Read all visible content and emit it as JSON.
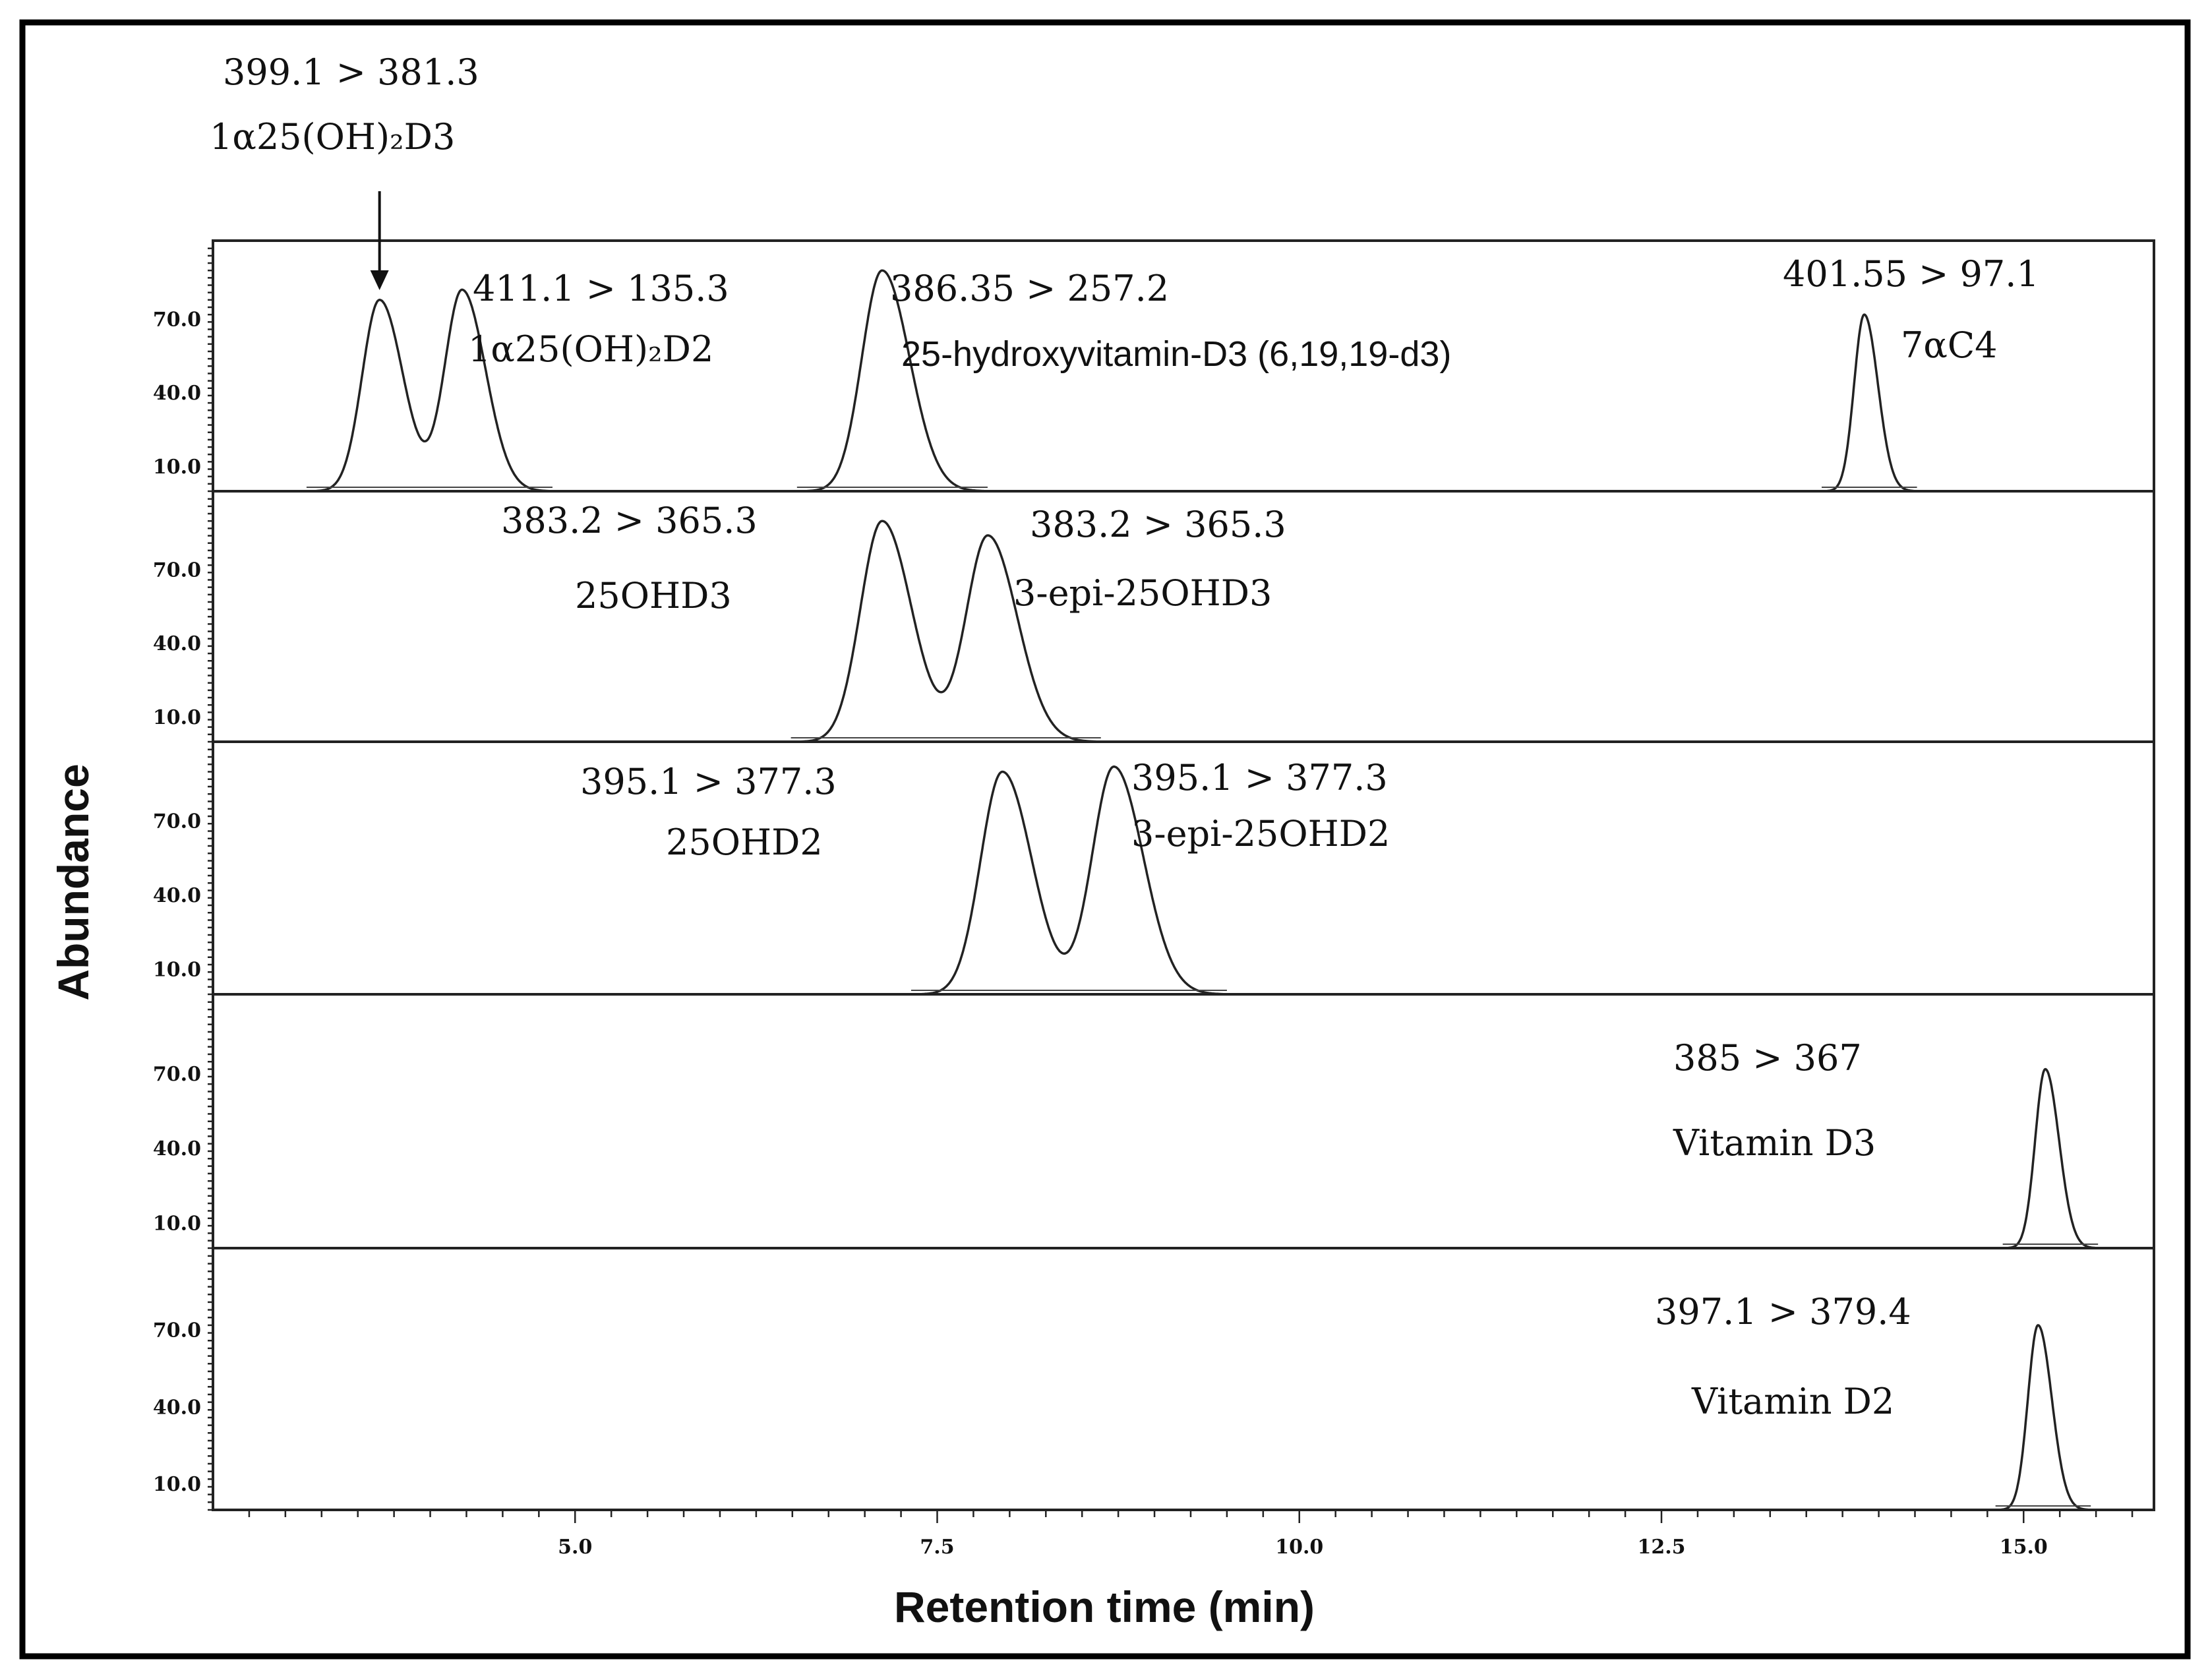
{
  "chart_data": {
    "type": "line",
    "xlabel": "Retention time (min)",
    "ylabel": "Abundance",
    "xlim": [
      2.5,
      15.9
    ],
    "xticks": [
      "5.0",
      "7.5",
      "10.0",
      "12.5",
      "15.0"
    ],
    "xtick_values": [
      5.0,
      7.5,
      10.0,
      12.5,
      15.0
    ],
    "ylim": [
      0,
      100
    ],
    "yticks": [
      "10.0",
      "40.0",
      "70.0"
    ],
    "ytick_values": [
      10,
      40,
      70
    ],
    "grid": false,
    "panels": [
      {
        "name": "panel-1",
        "peaks": [
          {
            "rt": 3.65,
            "height": 78,
            "width": 0.12
          },
          {
            "rt": 4.22,
            "height": 82,
            "width": 0.12
          },
          {
            "rt": 7.12,
            "height": 90,
            "width": 0.14
          },
          {
            "rt": 13.9,
            "height": 72,
            "width": 0.07
          }
        ],
        "labels": [
          {
            "transition": "399.1 > 381.3",
            "compound": "1α25(OH)₂D3",
            "arrow_rt": 3.65
          },
          {
            "transition": "411.1 > 135.3",
            "compound": "1α25(OH)₂D2"
          },
          {
            "transition": "386.35 > 257.2",
            "compound": "25-hydroxyvitamin-D3 (6,19,19-d3)"
          },
          {
            "transition": "401.55 > 97.1",
            "compound": "7αC4"
          }
        ]
      },
      {
        "name": "panel-2",
        "peaks": [
          {
            "rt": 7.12,
            "height": 90,
            "width": 0.15
          },
          {
            "rt": 7.85,
            "height": 84,
            "width": 0.15
          }
        ],
        "labels": [
          {
            "transition": "383.2 > 365.3",
            "compound": "25OHD3"
          },
          {
            "transition": "383.2 > 365.3",
            "compound": "3-epi-25OHD3"
          }
        ]
      },
      {
        "name": "panel-3",
        "peaks": [
          {
            "rt": 7.95,
            "height": 90,
            "width": 0.15
          },
          {
            "rt": 8.72,
            "height": 92,
            "width": 0.15
          }
        ],
        "labels": [
          {
            "transition": "395.1 > 377.3",
            "compound": "25OHD2"
          },
          {
            "transition": "395.1 > 377.3",
            "compound": "3-epi-25OHD2"
          }
        ]
      },
      {
        "name": "panel-4",
        "peaks": [
          {
            "rt": 15.15,
            "height": 72,
            "width": 0.07
          }
        ],
        "labels": [
          {
            "transition": "385 > 367",
            "compound": "Vitamin D3"
          }
        ]
      },
      {
        "name": "panel-5",
        "peaks": [
          {
            "rt": 15.1,
            "height": 72,
            "width": 0.07
          }
        ],
        "labels": [
          {
            "transition": "397.1 > 379.4",
            "compound": "Vitamin D2"
          }
        ]
      }
    ]
  }
}
